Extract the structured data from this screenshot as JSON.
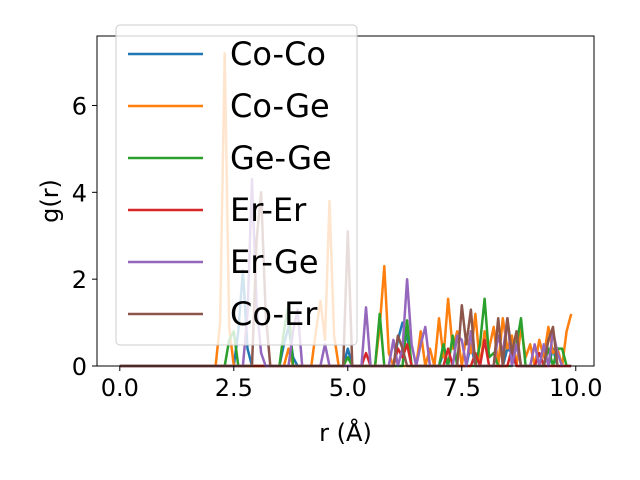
{
  "chart_data": {
    "type": "line",
    "title": "",
    "xlabel": "r (Å)",
    "ylabel": "g(r)",
    "xlim": [
      -0.5,
      10.4
    ],
    "ylim": [
      0,
      7.6
    ],
    "xticks": [
      0.0,
      2.5,
      5.0,
      7.5,
      10.0
    ],
    "xtick_labels": [
      "0.0",
      "2.5",
      "5.0",
      "7.5",
      "10.0"
    ],
    "yticks": [
      0,
      2,
      4,
      6
    ],
    "ytick_labels": [
      "0",
      "2",
      "4",
      "6"
    ],
    "grid": false,
    "legend_position": "upper-left",
    "series": [
      {
        "name": "Co-Co",
        "color": "#1f77b4",
        "x": [
          0.0,
          2.5,
          2.6,
          2.7,
          2.8,
          2.9,
          3.5,
          3.6,
          3.7,
          3.8,
          3.9,
          4.9,
          5.0,
          5.1,
          6.0,
          6.1,
          6.2,
          6.3,
          6.4,
          7.0,
          7.1,
          7.2,
          7.6,
          7.7,
          7.8,
          8.4,
          8.5,
          8.6,
          8.7,
          9.4,
          9.5,
          9.6,
          9.9
        ],
        "y": [
          0,
          0,
          0.8,
          2.2,
          0.4,
          0,
          0,
          0.5,
          0.9,
          0.2,
          0,
          0,
          0.4,
          0,
          0,
          0.6,
          1.0,
          0.7,
          0,
          0,
          0.3,
          0,
          0,
          0.5,
          0,
          0,
          0.4,
          0.3,
          0,
          0,
          0.4,
          0,
          0
        ]
      },
      {
        "name": "Co-Ge",
        "color": "#ff7f0e",
        "x": [
          0.0,
          2.1,
          2.2,
          2.3,
          2.4,
          2.5,
          3.6,
          3.7,
          3.8,
          4.2,
          4.3,
          4.4,
          4.5,
          4.6,
          4.7,
          4.8,
          4.9,
          5.6,
          5.7,
          5.8,
          5.9,
          6.0,
          6.5,
          6.6,
          6.7,
          6.8,
          6.9,
          7.0,
          7.1,
          7.2,
          7.3,
          7.4,
          7.5,
          7.6,
          7.7,
          7.8,
          7.9,
          8.0,
          8.1,
          8.2,
          8.3,
          8.4,
          8.5,
          8.6,
          8.7,
          8.8,
          8.9,
          9.0,
          9.1,
          9.2,
          9.3,
          9.4,
          9.5,
          9.6,
          9.7,
          9.8,
          9.9
        ],
        "y": [
          0,
          0,
          1.0,
          7.2,
          0.9,
          0,
          0,
          0.4,
          0,
          0,
          0.8,
          1.5,
          0.6,
          3.8,
          0.7,
          0,
          0,
          0,
          0.9,
          2.3,
          0.3,
          0,
          0,
          0.8,
          0,
          0.4,
          0,
          1.1,
          0.2,
          1.55,
          0.4,
          0.8,
          0,
          0.7,
          0.3,
          1.2,
          0,
          0.8,
          0.4,
          0.9,
          0,
          1.1,
          0.4,
          0.7,
          0,
          0.9,
          0.2,
          0.5,
          0,
          0.6,
          0.2,
          0.9,
          0.3,
          0.4,
          0,
          0.8,
          1.2
        ]
      },
      {
        "name": "Ge-Ge",
        "color": "#2ca02c",
        "x": [
          0.0,
          2.3,
          2.4,
          2.5,
          2.6,
          3.5,
          3.6,
          3.7,
          3.8,
          4.9,
          5.0,
          5.1,
          5.6,
          5.7,
          5.8,
          6.2,
          6.3,
          6.4,
          7.0,
          7.1,
          7.2,
          7.3,
          7.4,
          7.8,
          7.9,
          8.0,
          8.1,
          8.2,
          8.3,
          8.6,
          8.7,
          8.8,
          8.9,
          9.3,
          9.4,
          9.5,
          9.6,
          9.7,
          9.8
        ],
        "y": [
          0,
          0,
          0.6,
          0.8,
          0,
          0,
          0.8,
          1.4,
          0,
          0,
          0.2,
          0,
          0,
          1.2,
          0,
          0,
          1.05,
          0,
          0,
          0.5,
          0,
          0.7,
          0,
          0,
          0.5,
          1.55,
          0.2,
          0.3,
          0,
          0,
          0.5,
          1.1,
          0,
          0,
          0.4,
          0,
          0.4,
          0.4,
          0
        ]
      },
      {
        "name": "Er-Er",
        "color": "#d62728",
        "x": [
          0.0,
          5.3,
          5.4,
          5.5,
          6.0,
          6.1,
          6.2,
          6.3,
          6.4,
          7.1,
          7.2,
          7.3,
          7.7,
          7.8,
          7.9,
          8.0,
          8.1,
          8.5,
          8.6,
          8.7,
          9.1,
          9.2,
          9.3,
          9.9
        ],
        "y": [
          0,
          0,
          0.3,
          0,
          0,
          0.4,
          0.2,
          0.5,
          0,
          0,
          0.4,
          0,
          0,
          0.3,
          0,
          0.6,
          0,
          0,
          0.4,
          0,
          0,
          0.3,
          0,
          0
        ]
      },
      {
        "name": "Er-Ge",
        "color": "#9467bd",
        "x": [
          0.0,
          2.7,
          2.8,
          2.9,
          3.0,
          3.1,
          3.2,
          3.7,
          3.8,
          3.9,
          4.0,
          4.4,
          4.5,
          4.6,
          5.3,
          5.4,
          5.5,
          5.9,
          6.0,
          6.1,
          6.2,
          6.3,
          6.4,
          6.5,
          6.6,
          6.7,
          6.8,
          7.3,
          7.4,
          7.5,
          7.6,
          7.7,
          7.8,
          8.2,
          8.3,
          8.4,
          8.5,
          8.6,
          8.7,
          8.8,
          9.0,
          9.1,
          9.2,
          9.3,
          9.4,
          9.5,
          9.6,
          9.7
        ],
        "y": [
          0,
          0,
          1.2,
          4.3,
          1.4,
          0.3,
          0,
          0,
          0.8,
          1.3,
          0,
          0,
          0.5,
          0,
          0,
          1.35,
          0,
          0,
          0.6,
          0,
          0.4,
          2.0,
          0.5,
          0,
          0.5,
          0.9,
          0,
          0,
          0.7,
          0.6,
          0,
          0.8,
          0,
          0,
          0.7,
          0.3,
          1.1,
          0,
          0.5,
          0,
          0,
          0.5,
          0,
          0.5,
          0,
          0.8,
          0.3,
          0
        ]
      },
      {
        "name": "Co-Er",
        "color": "#8c564b",
        "x": [
          0.0,
          2.9,
          3.0,
          3.1,
          3.2,
          3.3,
          4.9,
          5.0,
          5.1,
          6.0,
          6.1,
          6.2,
          6.3,
          7.4,
          7.5,
          7.6,
          7.7,
          7.8,
          8.2,
          8.3,
          8.4,
          8.5,
          8.6,
          8.7,
          8.8,
          9.3,
          9.4,
          9.5,
          9.6
        ],
        "y": [
          0,
          0,
          2.9,
          4.0,
          1.2,
          0,
          0,
          3.1,
          0,
          0,
          0.7,
          0.4,
          0,
          0,
          1.4,
          0.5,
          1.3,
          0,
          0,
          1.1,
          0,
          1.1,
          0.3,
          0.8,
          0,
          0,
          0.6,
          0.9,
          0
        ]
      }
    ]
  }
}
